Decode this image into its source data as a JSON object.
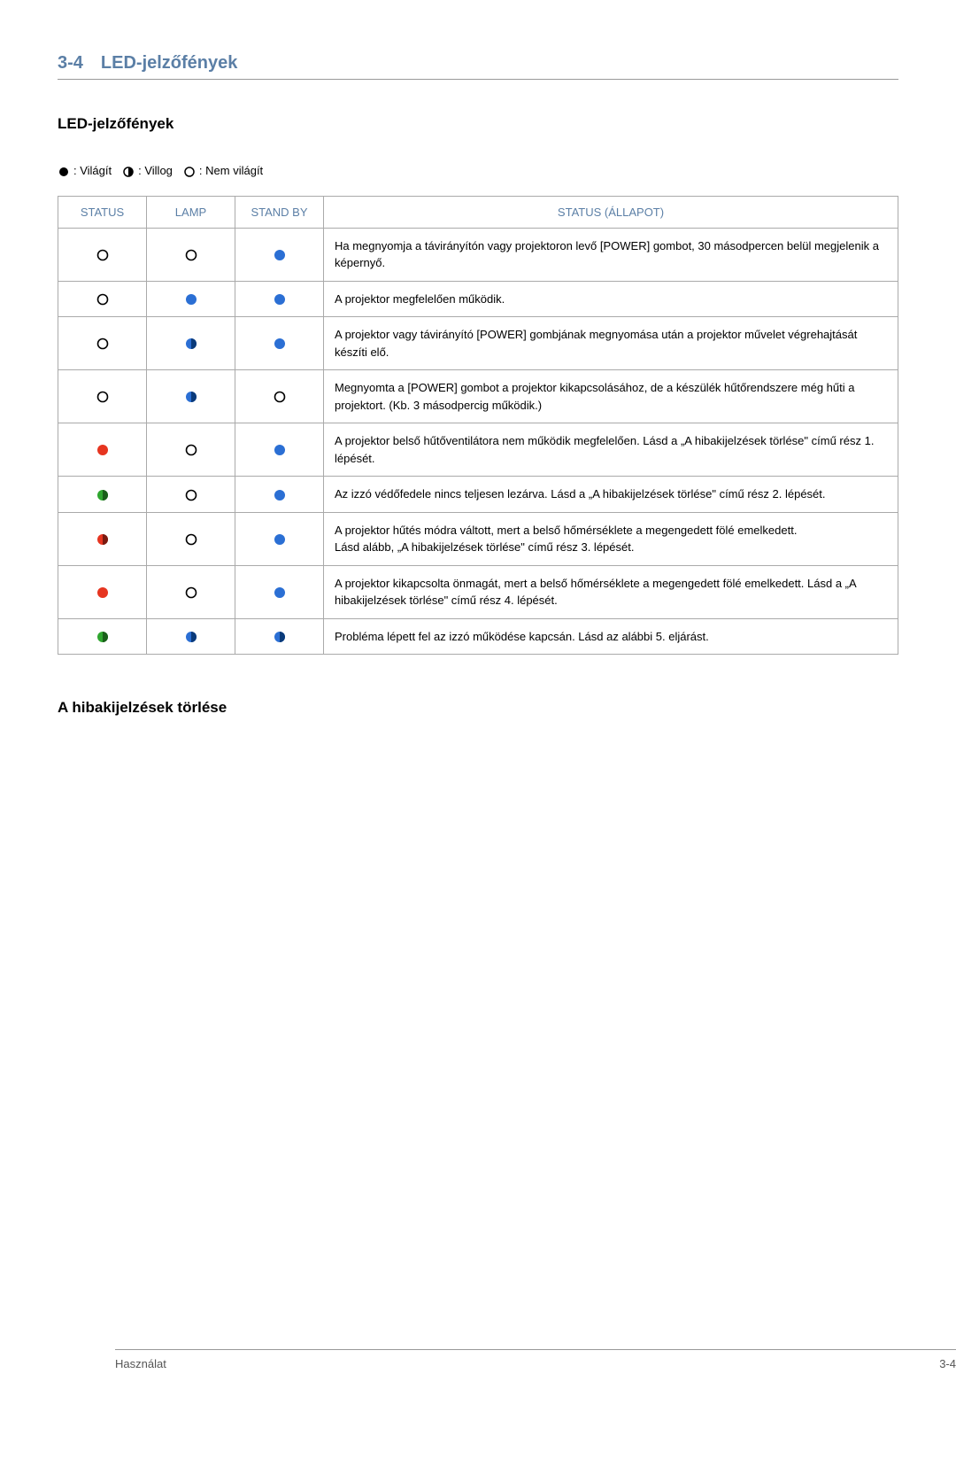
{
  "section": {
    "number": "3-4",
    "title": "LED-jelzőfények"
  },
  "subsection1": "LED-jelzőfények",
  "legend": {
    "lit": ": Világít",
    "blink": ": Villog",
    "off": ": Nem világít"
  },
  "headers": {
    "status": "STATUS",
    "lamp": "LAMP",
    "standby": "STAND BY",
    "desc": "STATUS (ÁLLAPOT)"
  },
  "rows": [
    {
      "status": "off",
      "lamp": "off",
      "standby": "blue-full",
      "desc": "Ha megnyomja a távirányítón vagy projektoron levő [POWER] gombot, 30 másodpercen belül megjelenik a képernyő."
    },
    {
      "status": "off",
      "lamp": "blue-full",
      "standby": "blue-full",
      "desc": "A projektor megfelelően működik."
    },
    {
      "status": "off",
      "lamp": "blue-half",
      "standby": "blue-full",
      "desc": "A projektor vagy távirányító [POWER] gombjának megnyomása után a projektor művelet végrehajtását készíti elő."
    },
    {
      "status": "off",
      "lamp": "blue-half",
      "standby": "off",
      "desc": "Megnyomta a [POWER] gombot a projektor kikapcsolásához, de a készülék hűtőrendszere még hűti a projektort. (Kb. 3 másodpercig működik.)"
    },
    {
      "status": "red-full",
      "lamp": "off",
      "standby": "blue-full",
      "desc": "A projektor belső hűtőventilátora nem működik megfelelően. Lásd a „A hibakijelzések törlése\" című rész 1. lépését."
    },
    {
      "status": "green-half",
      "lamp": "off",
      "standby": "blue-full",
      "desc": "Az izzó védőfedele nincs teljesen lezárva. Lásd a „A hibakijelzések törlése\" című rész 2. lépését."
    },
    {
      "status": "red-half",
      "lamp": "off",
      "standby": "blue-full",
      "desc": "A projektor hűtés módra váltott, mert a belső hőmérséklete a megengedett fölé emelkedett.\nLásd alább, „A hibakijelzések törlése\" című rész 3. lépését."
    },
    {
      "status": "red-full",
      "lamp": "off",
      "standby": "blue-full",
      "desc": "A projektor kikapcsolta önmagát, mert a belső hőmérséklete a megengedett fölé emelkedett. Lásd a „A hibakijelzések törlése\" című rész 4. lépését."
    },
    {
      "status": "green-half",
      "lamp": "blue-half",
      "standby": "blue-half",
      "desc": "Probléma lépett fel az izzó működése kapcsán. Lásd az alábbi 5. eljárást."
    }
  ],
  "subsection2": "A hibakijelzések törlése",
  "footer": {
    "left": "Használat",
    "right": "3-4"
  },
  "colors": {
    "blue": "#2B6FD4",
    "darkblue": "#0A3A7A",
    "red": "#E63520",
    "darkred": "#7A1A10",
    "green": "#2FA62F",
    "darkgreen": "#1A5F1A",
    "black": "#000",
    "stroke": "#000"
  }
}
